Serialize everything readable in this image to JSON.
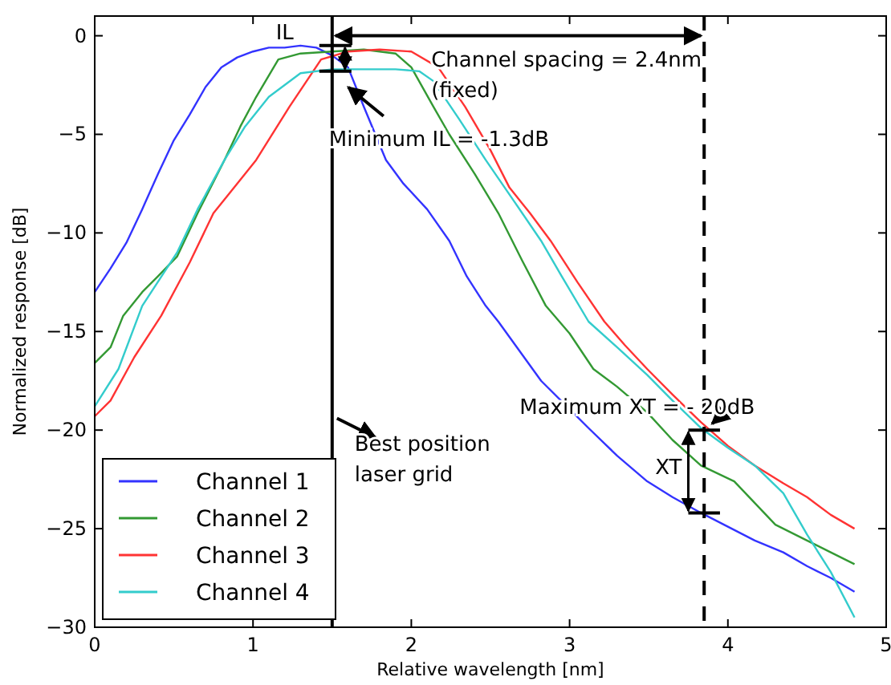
{
  "chart_data": {
    "type": "line",
    "xlabel": "Relative wavelength [nm]",
    "ylabel": "Normalized response [dB]",
    "xlim": [
      0,
      5
    ],
    "ylim": [
      -30,
      1
    ],
    "xticks": [
      0,
      1,
      2,
      3,
      4,
      5
    ],
    "yticks": [
      0,
      -5,
      -10,
      -15,
      -20,
      -25,
      -30
    ],
    "grid": false,
    "legend": "bottom left",
    "line_style": "solid",
    "marker": "none",
    "series": [
      {
        "name": "Channel 1",
        "color": "#3333ff",
        "x": [
          0,
          0.1,
          0.2,
          0.3,
          0.4,
          0.5,
          0.6,
          0.7,
          0.8,
          0.9,
          1.0,
          1.1,
          1.2,
          1.3,
          1.4,
          1.5,
          1.6,
          1.7,
          1.84,
          1.95,
          2.1,
          2.24,
          2.35,
          2.47,
          2.55,
          2.82,
          3.12,
          3.3,
          3.49,
          3.65,
          3.83,
          4.0,
          4.17,
          4.35,
          4.5,
          4.65,
          4.8
        ],
        "values": [
          -13,
          -11.8,
          -10.5,
          -8.8,
          -7,
          -5.3,
          -4,
          -2.6,
          -1.6,
          -1.1,
          -0.8,
          -0.6,
          -0.6,
          -0.5,
          -0.6,
          -1,
          -1.6,
          -3.6,
          -6.3,
          -7.5,
          -8.8,
          -10.4,
          -12.2,
          -13.7,
          -14.5,
          -17.5,
          -19.9,
          -21.3,
          -22.6,
          -23.4,
          -24.2,
          -24.9,
          -25.6,
          -26.2,
          -26.9,
          -27.5,
          -28.2
        ]
      },
      {
        "name": "Channel 2",
        "color": "#339933",
        "x": [
          0,
          0.1,
          0.18,
          0.3,
          0.4,
          0.52,
          0.65,
          0.82,
          0.92,
          1.02,
          1.16,
          1.3,
          1.5,
          1.7,
          1.9,
          2.0,
          2.14,
          2.24,
          2.4,
          2.55,
          2.7,
          2.85,
          3.0,
          3.15,
          3.3,
          3.49,
          3.65,
          3.83,
          4.04,
          4.3,
          4.5,
          4.65,
          4.8
        ],
        "values": [
          -16.6,
          -15.8,
          -14.2,
          -13,
          -12.2,
          -11.2,
          -9,
          -6.3,
          -4.6,
          -3.1,
          -1.2,
          -0.9,
          -0.8,
          -0.7,
          -0.9,
          -1.6,
          -3.6,
          -5,
          -7,
          -9,
          -11.4,
          -13.7,
          -15.1,
          -16.9,
          -17.8,
          -19.1,
          -20.5,
          -21.8,
          -22.6,
          -24.8,
          -25.6,
          -26.2,
          -26.8
        ]
      },
      {
        "name": "Channel 3",
        "color": "#ff3333",
        "x": [
          0,
          0.1,
          0.25,
          0.42,
          0.6,
          0.75,
          0.9,
          1.02,
          1.23,
          1.43,
          1.6,
          1.8,
          2.0,
          2.17,
          2.34,
          2.5,
          2.62,
          2.75,
          2.88,
          3.05,
          3.22,
          3.35,
          3.49,
          3.65,
          3.83,
          4.0,
          4.17,
          4.35,
          4.5,
          4.65,
          4.8
        ],
        "values": [
          -19.3,
          -18.5,
          -16.3,
          -14.2,
          -11.5,
          -9,
          -7.5,
          -6.3,
          -3.6,
          -1.2,
          -0.8,
          -0.7,
          -0.8,
          -1.6,
          -3.6,
          -5.8,
          -7.7,
          -9,
          -10.4,
          -12.5,
          -14.5,
          -15.7,
          -16.9,
          -18.2,
          -19.6,
          -20.8,
          -21.8,
          -22.7,
          -23.4,
          -24.3,
          -25
        ]
      },
      {
        "name": "Channel 4",
        "color": "#33cccc",
        "x": [
          0,
          0.15,
          0.3,
          0.52,
          0.65,
          0.82,
          0.95,
          1.1,
          1.3,
          1.5,
          1.7,
          1.9,
          2.05,
          2.14,
          2.3,
          2.47,
          2.65,
          2.82,
          2.95,
          3.12,
          3.3,
          3.49,
          3.65,
          3.83,
          4.0,
          4.17,
          4.35,
          4.5,
          4.65,
          4.8
        ],
        "values": [
          -18.8,
          -16.9,
          -13.7,
          -11,
          -8.8,
          -6.3,
          -4.6,
          -3.1,
          -1.9,
          -1.7,
          -1.7,
          -1.7,
          -1.8,
          -2.3,
          -4.2,
          -6.3,
          -8.4,
          -10.4,
          -12.2,
          -14.5,
          -15.8,
          -17.2,
          -18.5,
          -19.9,
          -20.9,
          -21.8,
          -23.2,
          -25.3,
          -27.2,
          -29.5
        ]
      }
    ],
    "ref_lines": [
      {
        "axis": "x",
        "value": 1.5,
        "color": "#000000",
        "line_style": "solid"
      },
      {
        "axis": "x",
        "value": 3.85,
        "color": "#000000",
        "line_style": "dashed"
      }
    ],
    "annotations": [
      "IL",
      "Channel spacing = 2.4nm\n(fixed)",
      "Minimum IL = -1.3dB",
      "Best position\nlaser grid",
      {
        "text": "Maximum XT = - 20dB",
        "x": 3.85,
        "y": -20
      },
      "XT"
    ]
  }
}
